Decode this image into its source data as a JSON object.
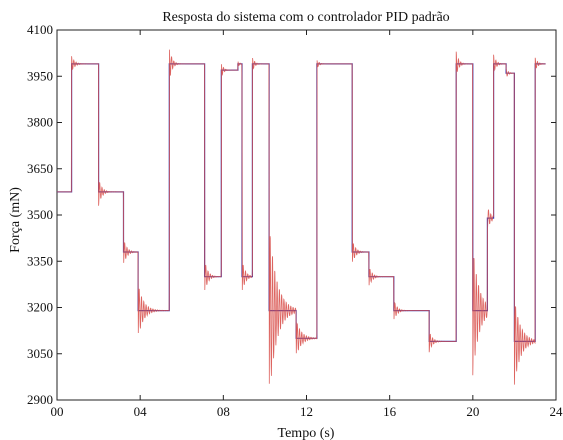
{
  "chart_data": {
    "type": "line",
    "title": "Resposta do sistema com o controlador PID padrão",
    "xlabel": "Tempo (s)",
    "ylabel": "Força (mN)",
    "xlim": [
      0,
      24
    ],
    "ylim": [
      2900,
      4100
    ],
    "x_ticks": [
      0,
      4,
      8,
      12,
      16,
      20,
      24
    ],
    "x_tick_labels": [
      "00",
      "04",
      "08",
      "12",
      "16",
      "20",
      "24"
    ],
    "y_ticks": [
      2900,
      3050,
      3200,
      3350,
      3500,
      3650,
      3800,
      3950,
      4100
    ],
    "y_tick_labels": [
      "2900",
      "3050",
      "3200",
      "3350",
      "3500",
      "3650",
      "3800",
      "3950",
      "4100"
    ],
    "grid": false,
    "legend": "none",
    "series": [
      {
        "role": "reference",
        "color": "#3b3bb0",
        "x": [
          0,
          0.7,
          0.7,
          2.0,
          2.0,
          3.2,
          3.2,
          3.9,
          3.9,
          5.4,
          5.4,
          7.1,
          7.1,
          7.9,
          7.9,
          8.7,
          8.7,
          8.9,
          8.9,
          9.4,
          9.4,
          10.2,
          10.2,
          11.5,
          11.5,
          12.5,
          12.5,
          14.2,
          14.2,
          15.0,
          15.0,
          16.2,
          16.2,
          17.9,
          17.9,
          19.2,
          19.2,
          20.0,
          20.0,
          20.7,
          20.7,
          21.0,
          21.0,
          21.6,
          21.6,
          22.0,
          22.0,
          23.0,
          23.0,
          23.5
        ],
        "values": [
          3575,
          3575,
          3990,
          3990,
          3575,
          3575,
          3380,
          3380,
          3190,
          3190,
          3990,
          3990,
          3300,
          3300,
          3970,
          3970,
          3990,
          3990,
          3300,
          3300,
          3990,
          3990,
          3190,
          3190,
          3100,
          3100,
          3990,
          3990,
          3380,
          3380,
          3300,
          3300,
          3190,
          3190,
          3090,
          3090,
          3990,
          3990,
          3190,
          3190,
          3490,
          3490,
          3990,
          3990,
          3960,
          3960,
          3090,
          3090,
          3990,
          3990
        ]
      },
      {
        "role": "response",
        "color": "#d9534f",
        "events": [
          {
            "t": 0.7,
            "v": 3990,
            "a": 25,
            "tau": 0.15
          },
          {
            "t": 2.0,
            "v": 3575,
            "a": -45,
            "tau": 0.15
          },
          {
            "t": 3.2,
            "v": 3380,
            "a": -45,
            "tau": 0.15
          },
          {
            "t": 3.9,
            "v": 3190,
            "a": -90,
            "tau": 0.25
          },
          {
            "t": 5.4,
            "v": 3990,
            "a": 60,
            "tau": 0.12
          },
          {
            "t": 7.1,
            "v": 3300,
            "a": -55,
            "tau": 0.15
          },
          {
            "t": 7.9,
            "v": 3970,
            "a": 25,
            "tau": 0.1
          },
          {
            "t": 8.7,
            "v": 3990,
            "a": 10,
            "tau": 0.08
          },
          {
            "t": 8.9,
            "v": 3300,
            "a": -55,
            "tau": 0.15
          },
          {
            "t": 9.4,
            "v": 3990,
            "a": 25,
            "tau": 0.1
          },
          {
            "t": 10.2,
            "v": 3190,
            "a": -290,
            "tau": 0.35
          },
          {
            "t": 11.5,
            "v": 3100,
            "a": -60,
            "tau": 0.25
          },
          {
            "t": 12.5,
            "v": 3990,
            "a": 15,
            "tau": 0.1
          },
          {
            "t": 14.2,
            "v": 3380,
            "a": -40,
            "tau": 0.15
          },
          {
            "t": 15.0,
            "v": 3300,
            "a": -35,
            "tau": 0.15
          },
          {
            "t": 16.2,
            "v": 3190,
            "a": -35,
            "tau": 0.15
          },
          {
            "t": 17.9,
            "v": 3090,
            "a": -35,
            "tau": 0.15
          },
          {
            "t": 19.2,
            "v": 3990,
            "a": 40,
            "tau": 0.12
          },
          {
            "t": 20.0,
            "v": 3190,
            "a": -210,
            "tau": 0.3
          },
          {
            "t": 20.7,
            "v": 3490,
            "a": -40,
            "tau": 0.15
          },
          {
            "t": 21.0,
            "v": 3990,
            "a": 30,
            "tau": 0.12
          },
          {
            "t": 21.6,
            "v": 3960,
            "a": 15,
            "tau": 0.1
          },
          {
            "t": 22.0,
            "v": 3090,
            "a": -140,
            "tau": 0.3
          },
          {
            "t": 23.0,
            "v": 3990,
            "a": 20,
            "tau": 0.12
          }
        ]
      }
    ]
  }
}
